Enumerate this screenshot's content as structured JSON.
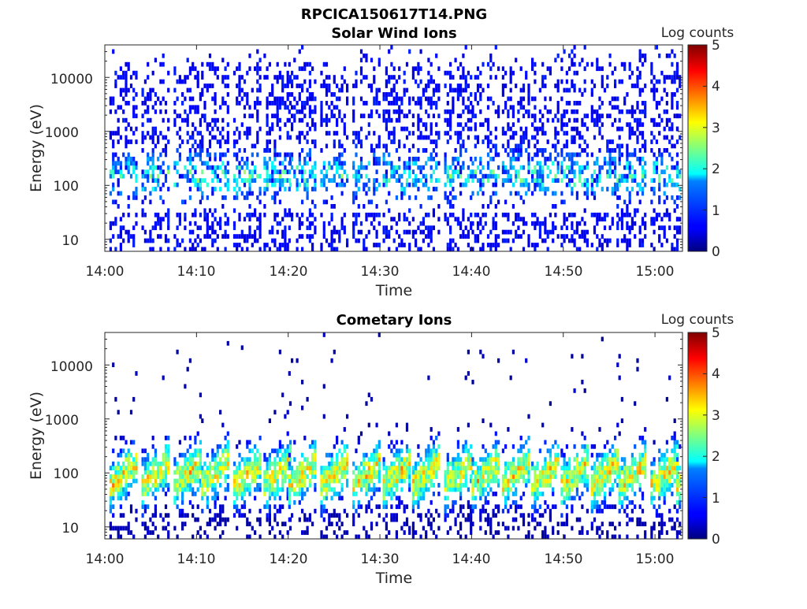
{
  "figure_title": "RPCICA150617T14.PNG",
  "chart_data": [
    {
      "type": "heatmap",
      "title": "Solar Wind Ions",
      "xlabel": "Time",
      "ylabel": "Energy (eV)",
      "x_tick_labels": [
        "14:00",
        "14:10",
        "14:20",
        "14:30",
        "14:40",
        "14:50",
        "15:00"
      ],
      "x_range": [
        "14:00",
        "15:03"
      ],
      "y_scale": "log",
      "y_tick_labels": [
        "10",
        "100",
        "1000",
        "10000"
      ],
      "y_range": [
        6,
        40000
      ],
      "colorbar": {
        "label": "Log counts",
        "range": [
          0,
          5
        ],
        "tick_labels": [
          "0",
          "1",
          "2",
          "3",
          "4",
          "5"
        ],
        "colormap": "jet"
      },
      "sweep_start_minutes": [
        0.5,
        4.0,
        7.5,
        10.5,
        14.0,
        17.3,
        20.0,
        23.5,
        27.0,
        30.3,
        33.5,
        37.0,
        40.0,
        43.3,
        46.5,
        49.7,
        53.0,
        56.0,
        59.5,
        62.3
      ],
      "typical_peak": {
        "energy_eV": 150,
        "log_counts": 2
      },
      "grid": false
    },
    {
      "type": "heatmap",
      "title": "Cometary Ions",
      "xlabel": "Time",
      "ylabel": "Energy (eV)",
      "x_tick_labels": [
        "14:00",
        "14:10",
        "14:20",
        "14:30",
        "14:40",
        "14:50",
        "15:00"
      ],
      "x_range": [
        "14:00",
        "15:03"
      ],
      "y_scale": "log",
      "y_tick_labels": [
        "10",
        "100",
        "1000",
        "10000"
      ],
      "y_range": [
        6,
        40000
      ],
      "colorbar": {
        "label": "Log counts",
        "range": [
          0,
          5
        ],
        "tick_labels": [
          "0",
          "1",
          "2",
          "3",
          "4",
          "5"
        ],
        "colormap": "jet"
      },
      "sweep_start_minutes": [
        0.5,
        4.0,
        7.5,
        10.5,
        14.0,
        17.3,
        20.0,
        23.5,
        27.0,
        30.3,
        33.5,
        37.0,
        40.0,
        43.3,
        46.5,
        49.7,
        53.0,
        56.0,
        59.5,
        62.3
      ],
      "typical_peak": {
        "energy_eV": 100,
        "log_counts": 3.5
      },
      "grid": false
    }
  ]
}
